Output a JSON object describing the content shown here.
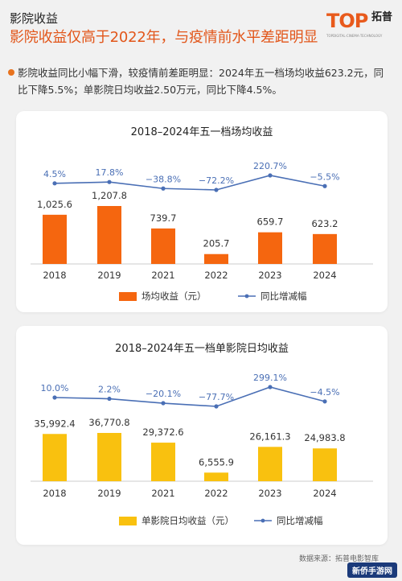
{
  "header": {
    "section": "影院收益",
    "title": "影院收益仅高于2022年，与疫情前水平差距明显"
  },
  "logo": {
    "text": "TOP",
    "cn": "拓普",
    "sub": "TOPDIGITAL·CINEMA·TECHNOLOGY"
  },
  "summary": "影院收益同比小幅下滑，较疫情前差距明显：2024年五一档场均收益623.2元，同比下降5.5%；单影院日均收益2.50万元，同比下降4.5%。",
  "colors": {
    "accent": "#e2561a",
    "bar1": "#f5660f",
    "bar2": "#f9c10f",
    "line": "#4a6fb5"
  },
  "chart_data": [
    {
      "type": "bar",
      "title": "2018–2024年五一档场均收益",
      "categories": [
        "2018",
        "2019",
        "2021",
        "2022",
        "2023",
        "2024"
      ],
      "series": [
        {
          "name": "场均收益（元）",
          "type": "bar",
          "values": [
            1025.6,
            1207.8,
            739.7,
            205.7,
            659.7,
            623.2
          ],
          "labels": [
            "1,025.6",
            "1,207.8",
            "739.7",
            "205.7",
            "659.7",
            "623.2"
          ]
        },
        {
          "name": "同比增减幅",
          "type": "line",
          "values": [
            4.5,
            17.8,
            -38.8,
            -72.2,
            220.7,
            -5.5
          ],
          "labels": [
            "4.5%",
            "17.8%",
            "−38.8%",
            "−72.2%",
            "220.7%",
            "−5.5%"
          ]
        }
      ],
      "legend_position": "bottom"
    },
    {
      "type": "bar",
      "title": "2018–2024年五一档单影院日均收益",
      "categories": [
        "2018",
        "2019",
        "2021",
        "2022",
        "2023",
        "2024"
      ],
      "series": [
        {
          "name": "单影院日均收益（元）",
          "type": "bar",
          "values": [
            35992.4,
            36770.8,
            29372.6,
            6555.9,
            26161.3,
            24983.8
          ],
          "labels": [
            "35,992.4",
            "36,770.8",
            "29,372.6",
            "6,555.9",
            "26,161.3",
            "24,983.8"
          ]
        },
        {
          "name": "同比增减幅",
          "type": "line",
          "values": [
            10.0,
            2.2,
            -20.1,
            -77.7,
            299.1,
            -4.5
          ],
          "labels": [
            "10.0%",
            "2.2%",
            "−20.1%",
            "−77.7%",
            "299.1%",
            "−4.5%"
          ]
        }
      ],
      "legend_position": "bottom"
    }
  ],
  "source": "数据来源：拓普电影智库",
  "watermark": "新侨手游网"
}
